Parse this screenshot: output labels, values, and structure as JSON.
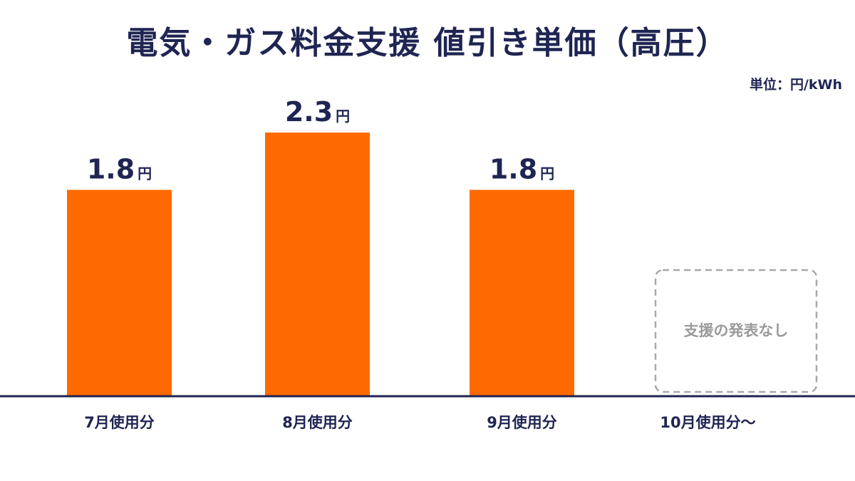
{
  "header": {
    "title": "電気・ガス料金支援 値引き単価（高圧）",
    "unit_note": "単位：円/kWh"
  },
  "chart_data": {
    "type": "bar",
    "title": "電気・ガス料金支援 値引き単価（高圧）",
    "ylabel": "",
    "xlabel": "",
    "unit": "円/kWh",
    "categories": [
      "7月使用分",
      "8月使用分",
      "9月使用分",
      "10月使用分～"
    ],
    "values": [
      1.8,
      2.3,
      1.8,
      null
    ],
    "value_labels": [
      "1.8",
      "2.3",
      "1.8",
      null
    ],
    "value_suffix": "円",
    "no_data_label": "支援の発表なし",
    "ylim": [
      0,
      2.3
    ],
    "grid": false,
    "legend": "none",
    "colors": {
      "bar": "#ff6a00",
      "text": "#1f2552",
      "axis": "#1f2552",
      "placeholder_border": "#a8a8a8",
      "placeholder_text": "#9a9a9a"
    }
  }
}
